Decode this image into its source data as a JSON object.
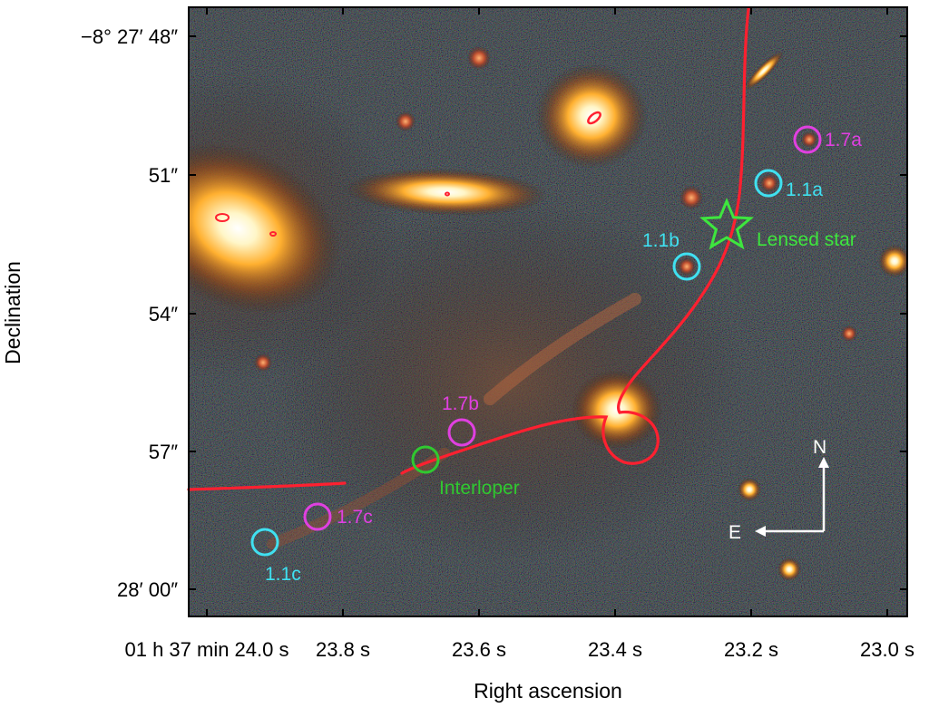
{
  "figure": {
    "xlabel": "Right ascension",
    "ylabel": "Declination",
    "x_ticks": [
      "01 h 37 min 24.0 s",
      "23.8 s",
      "23.6 s",
      "23.4 s",
      "23.2 s",
      "23.0 s"
    ],
    "y_ticks": [
      "−8° 27′ 48″",
      "51″",
      "54″",
      "57″",
      "28′ 00″"
    ],
    "annotations": {
      "img_1_7a": {
        "label": "1.7a",
        "color": "#e040e0"
      },
      "img_1_1a": {
        "label": "1.1a",
        "color": "#40e0f0"
      },
      "img_1_1b": {
        "label": "1.1b",
        "color": "#40e0f0"
      },
      "lensed_star": {
        "label": "Lensed star",
        "color": "#3ee63e"
      },
      "img_1_7b": {
        "label": "1.7b",
        "color": "#e040e0"
      },
      "interloper": {
        "label": "Interloper",
        "color": "#30c830"
      },
      "img_1_7c": {
        "label": "1.7c",
        "color": "#e040e0"
      },
      "img_1_1c": {
        "label": "1.1c",
        "color": "#40e0f0"
      }
    },
    "compass": {
      "north": "N",
      "east": "E"
    },
    "critical_curve_color": "#ff2030"
  }
}
